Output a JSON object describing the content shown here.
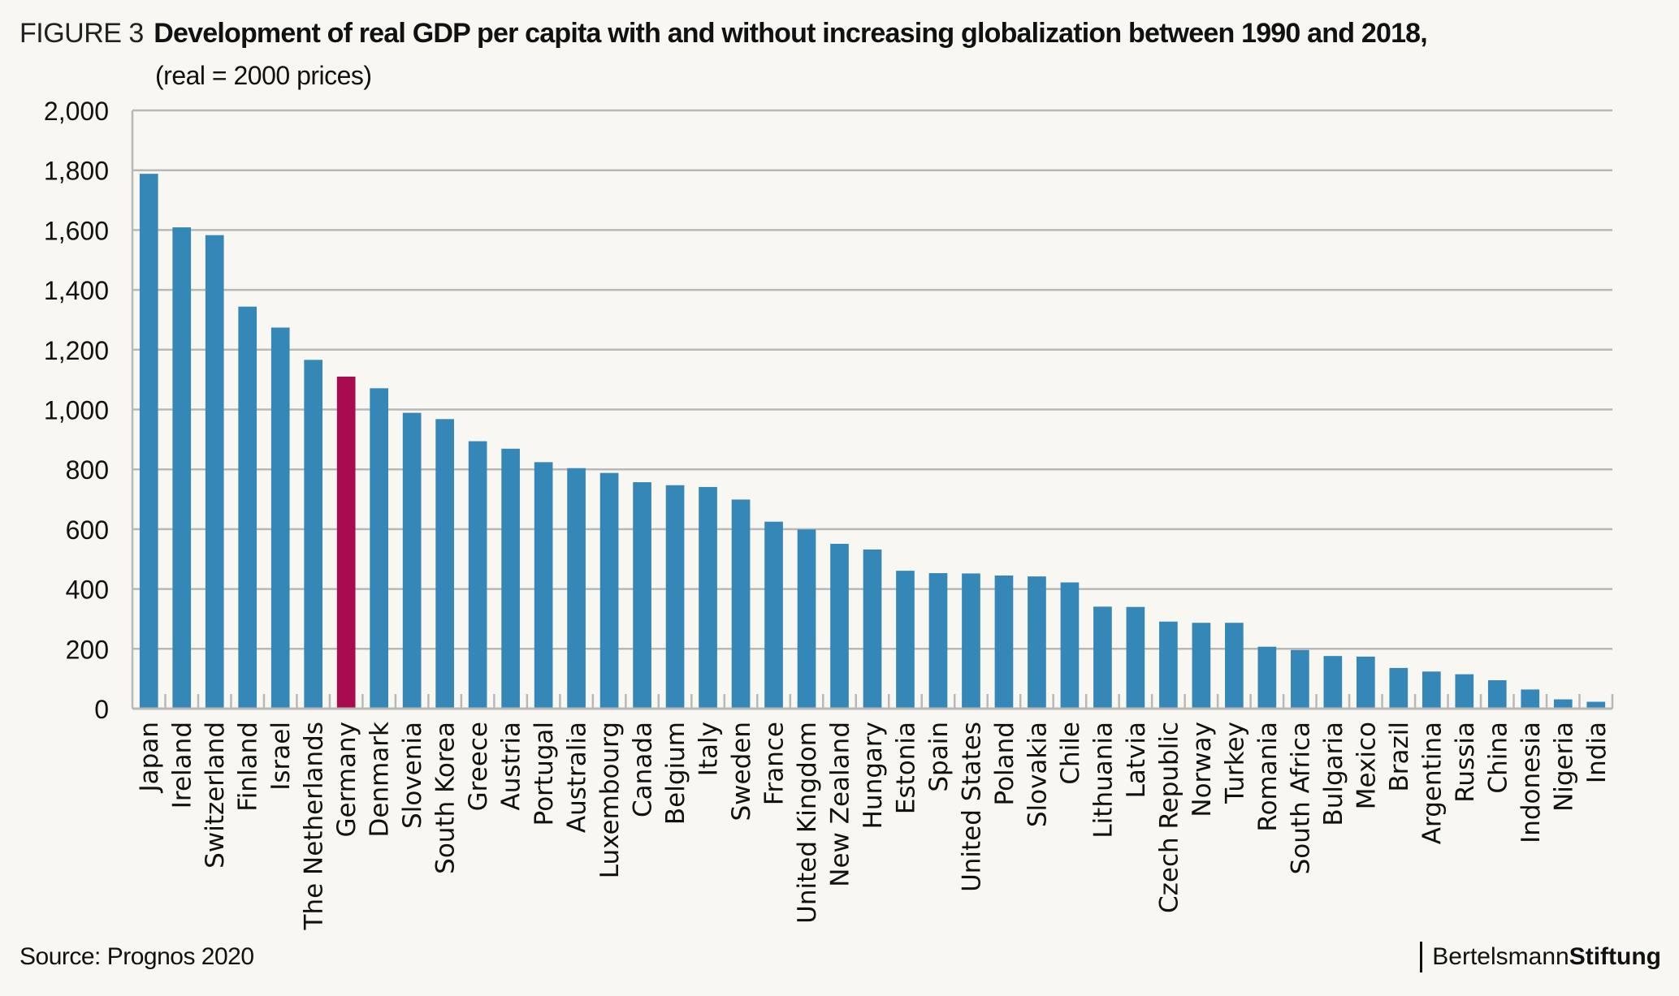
{
  "header": {
    "figure_label": "FIGURE 3",
    "title": "Development of real GDP per capita with and without increasing globalization between 1990 and 2018,",
    "subtitle": "(real = 2000 prices)"
  },
  "footer": {
    "source": "Source: Prognos 2020",
    "brand_regular": "Bertelsmann",
    "brand_bold": "Stiftung"
  },
  "colors": {
    "bar": "#3487b7",
    "highlight": "#a80c4f",
    "grid": "#b8b8b8",
    "background": "#f8f7f1"
  },
  "chart_data": {
    "type": "bar",
    "title": "Development of real GDP per capita with and without increasing globalization between 1990 and 2018, (real = 2000 prices)",
    "xlabel": "",
    "ylabel": "",
    "ylim": [
      0,
      2000
    ],
    "yticks": [
      0,
      200,
      400,
      600,
      800,
      1000,
      1200,
      1400,
      1600,
      1800,
      2000
    ],
    "ytick_labels": [
      "0",
      "200",
      "400",
      "600",
      "800",
      "1,000",
      "1,200",
      "1,400",
      "1,600",
      "1,800",
      "2,000"
    ],
    "grid": true,
    "legend": "none",
    "highlight_category": "Germany",
    "categories": [
      "Japan",
      "Ireland",
      "Switzerland",
      "Finland",
      "Israel",
      "The Netherlands",
      "Germany",
      "Denmark",
      "Slovenia",
      "South Korea",
      "Greece",
      "Austria",
      "Portugal",
      "Australia",
      "Luxembourg",
      "Canada",
      "Belgium",
      "Italy",
      "Sweden",
      "France",
      "United Kingdom",
      "New Zealand",
      "Hungary",
      "Estonia",
      "Spain",
      "United States",
      "Poland",
      "Slovakia",
      "Chile",
      "Lithuania",
      "Latvia",
      "Czech Republic",
      "Norway",
      "Turkey",
      "Romania",
      "South Africa",
      "Bulgaria",
      "Mexico",
      "Brazil",
      "Argentina",
      "Russia",
      "China",
      "Indonesia",
      "Nigeria",
      "India"
    ],
    "values": [
      1788,
      1609,
      1583,
      1344,
      1274,
      1166,
      1110,
      1071,
      989,
      968,
      894,
      869,
      824,
      804,
      788,
      757,
      747,
      741,
      699,
      625,
      599,
      551,
      532,
      461,
      453,
      452,
      445,
      442,
      422,
      341,
      340,
      291,
      287,
      287,
      207,
      196,
      176,
      174,
      136,
      124,
      115,
      95,
      64,
      31,
      23
    ]
  }
}
